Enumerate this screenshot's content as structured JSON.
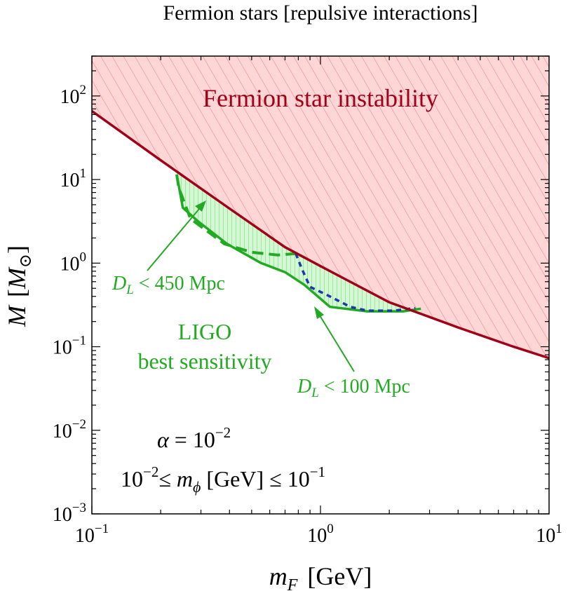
{
  "chart_data": {
    "type": "line",
    "title": "Fermion stars  [repulsive interactions]",
    "xlabel": {
      "symbol": "m",
      "sub": "F",
      "unit": "[GeV]"
    },
    "ylabel": {
      "symbol": "M",
      "unit_open": "[",
      "unit_symbol": "M",
      "unit_sub": "⊙",
      "unit_close": "]"
    },
    "x_scale": "log",
    "y_scale": "log",
    "xlim": [
      0.1,
      10
    ],
    "ylim": [
      0.001,
      300
    ],
    "x_ticks": [
      {
        "value": 0.1,
        "base": "10",
        "exp": "−1"
      },
      {
        "value": 1,
        "base": "10",
        "exp": "0"
      },
      {
        "value": 10,
        "base": "10",
        "exp": "1"
      }
    ],
    "y_ticks": [
      {
        "value": 0.001,
        "base": "10",
        "exp": "−3"
      },
      {
        "value": 0.01,
        "base": "10",
        "exp": "−2"
      },
      {
        "value": 0.1,
        "base": "10",
        "exp": "−1"
      },
      {
        "value": 1,
        "base": "10",
        "exp": "0"
      },
      {
        "value": 10,
        "base": "10",
        "exp": "1"
      },
      {
        "value": 100,
        "base": "10",
        "exp": "2"
      }
    ],
    "series": [
      {
        "name": "Fermion star instability",
        "style": "solid",
        "fill": "hatched",
        "color": "#a00018",
        "fill_color": "#ffd6d6",
        "x": [
          0.1,
          0.2,
          0.4,
          0.7,
          1.0,
          2.0,
          4.0,
          7.0,
          10.0
        ],
        "y": [
          66,
          17,
          4.5,
          1.55,
          0.92,
          0.34,
          0.17,
          0.1,
          0.073
        ]
      },
      {
        "name": "D_L < 450 Mpc",
        "style": "dashed",
        "color": "#22aa22",
        "x": [
          0.235,
          0.24,
          0.27,
          0.38,
          0.5,
          0.65,
          0.78
        ],
        "y": [
          11.5,
          8.0,
          3.4,
          1.7,
          1.35,
          1.25,
          1.3
        ]
      },
      {
        "name": "D_L < 100 Mpc",
        "style": "dotted",
        "color": "#1a3aa8",
        "x": [
          0.78,
          0.83,
          0.9,
          1.1,
          1.35,
          1.6,
          2.1,
          2.6
        ],
        "y": [
          1.3,
          0.85,
          0.52,
          0.4,
          0.3,
          0.27,
          0.27,
          0.29
        ]
      },
      {
        "name": "LIGO best sensitivity",
        "style": "solid",
        "fill": "hatched",
        "color": "#22aa22",
        "fill_color": "#ccf5cc",
        "x": [
          0.235,
          0.25,
          0.29,
          0.39,
          0.55,
          0.7,
          0.85,
          1.1,
          1.6,
          2.3,
          2.75
        ],
        "y": [
          11.5,
          4.6,
          3.2,
          1.7,
          1.0,
          0.78,
          0.55,
          0.3,
          0.265,
          0.265,
          0.285
        ]
      }
    ],
    "annotations": {
      "instability": "Fermion star instability",
      "dl450_prefix": "D",
      "dl450_sub": "L",
      "dl450_rest": " < 450 Mpc",
      "dl100_prefix": "D",
      "dl100_sub": "L",
      "dl100_rest": " < 100 Mpc",
      "ligo_line1": "LIGO",
      "ligo_line2": "best sensitivity",
      "alpha_sym": "α",
      "alpha_eq": " = 10",
      "alpha_exp": "−2",
      "range_lo_base": "10",
      "range_lo_exp": "−2",
      "range_le1": "≤ ",
      "range_sym": "m",
      "range_sub": "ϕ",
      "range_unit": " [GeV] ≤ 10",
      "range_hi_exp": "−1"
    },
    "grid": false,
    "legend": "none"
  }
}
